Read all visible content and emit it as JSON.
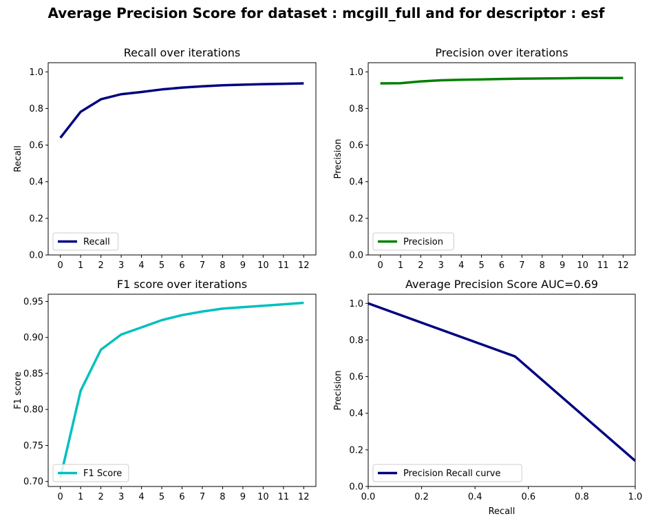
{
  "suptitle": "Average Precision Score for dataset : mcgill_full and for descriptor : esf",
  "chart_data": [
    {
      "type": "line",
      "title": "Recall over iterations",
      "xlabel": "",
      "ylabel": "Recall",
      "x": [
        0,
        1,
        2,
        3,
        4,
        5,
        6,
        7,
        8,
        9,
        10,
        11,
        12
      ],
      "xticks": [
        "0",
        "1",
        "2",
        "3",
        "4",
        "5",
        "6",
        "7",
        "8",
        "9",
        "10",
        "11",
        "12"
      ],
      "xlim": [
        -0.6,
        12.6
      ],
      "ylim": [
        0,
        1.05
      ],
      "yticks": [
        "0.0",
        "0.2",
        "0.4",
        "0.6",
        "0.8",
        "1.0"
      ],
      "ytick_values": [
        0,
        0.2,
        0.4,
        0.6,
        0.8,
        1.0
      ],
      "legend_position": "lower-left",
      "series": [
        {
          "name": "Recall",
          "color": "#000080",
          "values": [
            0.64,
            0.782,
            0.85,
            0.878,
            0.89,
            0.904,
            0.914,
            0.921,
            0.927,
            0.93,
            0.933,
            0.935,
            0.937
          ]
        }
      ]
    },
    {
      "type": "line",
      "title": "Precision over iterations",
      "xlabel": "",
      "ylabel": "Precision",
      "x": [
        0,
        1,
        2,
        3,
        4,
        5,
        6,
        7,
        8,
        9,
        10,
        11,
        12
      ],
      "xticks": [
        "0",
        "1",
        "2",
        "3",
        "4",
        "5",
        "6",
        "7",
        "8",
        "9",
        "10",
        "11",
        "12"
      ],
      "xlim": [
        -0.6,
        12.6
      ],
      "ylim": [
        0,
        1.05
      ],
      "yticks": [
        "0.0",
        "0.2",
        "0.4",
        "0.6",
        "0.8",
        "1.0"
      ],
      "ytick_values": [
        0,
        0.2,
        0.4,
        0.6,
        0.8,
        1.0
      ],
      "legend_position": "lower-left",
      "series": [
        {
          "name": "Precision",
          "color": "#008000",
          "values": [
            0.937,
            0.938,
            0.948,
            0.954,
            0.957,
            0.959,
            0.961,
            0.963,
            0.964,
            0.965,
            0.966,
            0.966,
            0.967
          ]
        }
      ]
    },
    {
      "type": "line",
      "title": "F1 score over iterations",
      "xlabel": "",
      "ylabel": "F1 score",
      "x": [
        0,
        1,
        2,
        3,
        4,
        5,
        6,
        7,
        8,
        9,
        10,
        11,
        12
      ],
      "xticks": [
        "0",
        "1",
        "2",
        "3",
        "4",
        "5",
        "6",
        "7",
        "8",
        "9",
        "10",
        "11",
        "12"
      ],
      "xlim": [
        -0.6,
        12.6
      ],
      "ylim": [
        0.693,
        0.96
      ],
      "yticks": [
        "0.70",
        "0.75",
        "0.80",
        "0.85",
        "0.90",
        "0.95"
      ],
      "ytick_values": [
        0.7,
        0.75,
        0.8,
        0.85,
        0.9,
        0.95
      ],
      "legend_position": "lower-left",
      "series": [
        {
          "name": "F1 Score",
          "color": "#00BFBF",
          "values": [
            0.705,
            0.826,
            0.883,
            0.904,
            0.914,
            0.924,
            0.931,
            0.936,
            0.94,
            0.942,
            0.944,
            0.946,
            0.948
          ]
        }
      ]
    },
    {
      "type": "line",
      "title": "Average Precision Score AUC=0.69",
      "xlabel": "Recall",
      "ylabel": "Precision",
      "x": [
        0,
        0.55,
        1.0
      ],
      "xticks": [
        "0.0",
        "0.2",
        "0.4",
        "0.6",
        "0.8",
        "1.0"
      ],
      "xtick_values": [
        0,
        0.2,
        0.4,
        0.6,
        0.8,
        1.0
      ],
      "xlim": [
        0,
        1.0
      ],
      "ylim": [
        0,
        1.05
      ],
      "yticks": [
        "0.0",
        "0.2",
        "0.4",
        "0.6",
        "0.8",
        "1.0"
      ],
      "ytick_values": [
        0,
        0.2,
        0.4,
        0.6,
        0.8,
        1.0
      ],
      "legend_position": "lower-left",
      "series": [
        {
          "name": "Precision Recall curve",
          "color": "#000080",
          "values": [
            1.0,
            0.71,
            0.14
          ]
        }
      ]
    }
  ]
}
